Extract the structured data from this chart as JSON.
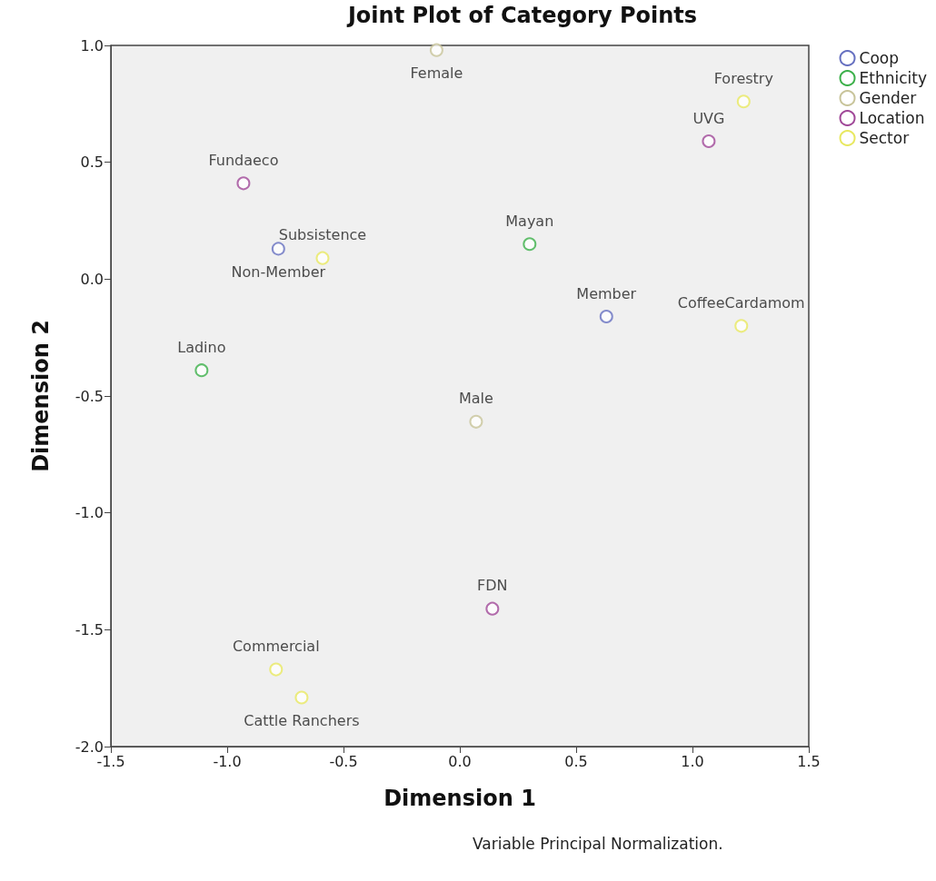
{
  "chart_data": {
    "type": "scatter",
    "title": "Joint Plot of Category Points",
    "xlabel": "Dimension 1",
    "ylabel": "Dimension 2",
    "annotations": [
      "Variable Principal Normalization."
    ],
    "xlim": [
      -1.5,
      1.5
    ],
    "xticks": [
      {
        "value": -1.5,
        "label": "-1.5"
      },
      {
        "value": -1,
        "label": "-1.0"
      },
      {
        "value": -0.5,
        "label": "-0.5"
      },
      {
        "value": 0,
        "label": "0.0"
      },
      {
        "value": 0.5,
        "label": "0.5"
      },
      {
        "value": 1,
        "label": "1.0"
      },
      {
        "value": 1.5,
        "label": "1.5"
      }
    ],
    "ylim": [
      -2,
      1
    ],
    "yticks": [
      {
        "value": -2,
        "label": "-2.0"
      },
      {
        "value": -1.5,
        "label": "-1.5"
      },
      {
        "value": -1,
        "label": "-1.0"
      },
      {
        "value": -0.5,
        "label": "-0.5"
      },
      {
        "value": 0,
        "label": "0.0"
      },
      {
        "value": 0.5,
        "label": "0.5"
      },
      {
        "value": 1,
        "label": "1.0"
      }
    ],
    "grid": false,
    "legend": "top right",
    "marker": "circle",
    "series": [
      {
        "name": "Coop",
        "color": "#6670c0",
        "x": [
          -0.78,
          0.63
        ],
        "values": [
          0.13,
          -0.16
        ],
        "value_labels": [
          "Non-Member",
          "Member"
        ]
      },
      {
        "name": "Ethnicity",
        "color": "#3cb04a",
        "x": [
          0.3,
          -1.11
        ],
        "values": [
          0.15,
          -0.39
        ],
        "value_labels": [
          "Mayan",
          "Ladino"
        ]
      },
      {
        "name": "Gender",
        "color": "#c8c49a",
        "x": [
          -0.1,
          0.07
        ],
        "values": [
          0.98,
          -0.61
        ],
        "value_labels": [
          "Female",
          "Male"
        ]
      },
      {
        "name": "Location",
        "color": "#a04898",
        "x": [
          -0.93,
          1.07,
          0.14
        ],
        "values": [
          0.41,
          0.59,
          -1.41
        ],
        "value_labels": [
          "Fundaeco",
          "UVG",
          "FDN"
        ]
      },
      {
        "name": "Sector",
        "color": "#e8e860",
        "x": [
          -0.59,
          1.22,
          1.21,
          -0.79,
          -0.68
        ],
        "values": [
          0.09,
          0.76,
          -0.2,
          -1.67,
          -1.79
        ],
        "value_labels": [
          "Subsistence",
          "Forestry",
          "CoffeeCardamom",
          "Commercial",
          "Cattle Ranchers"
        ]
      }
    ]
  }
}
